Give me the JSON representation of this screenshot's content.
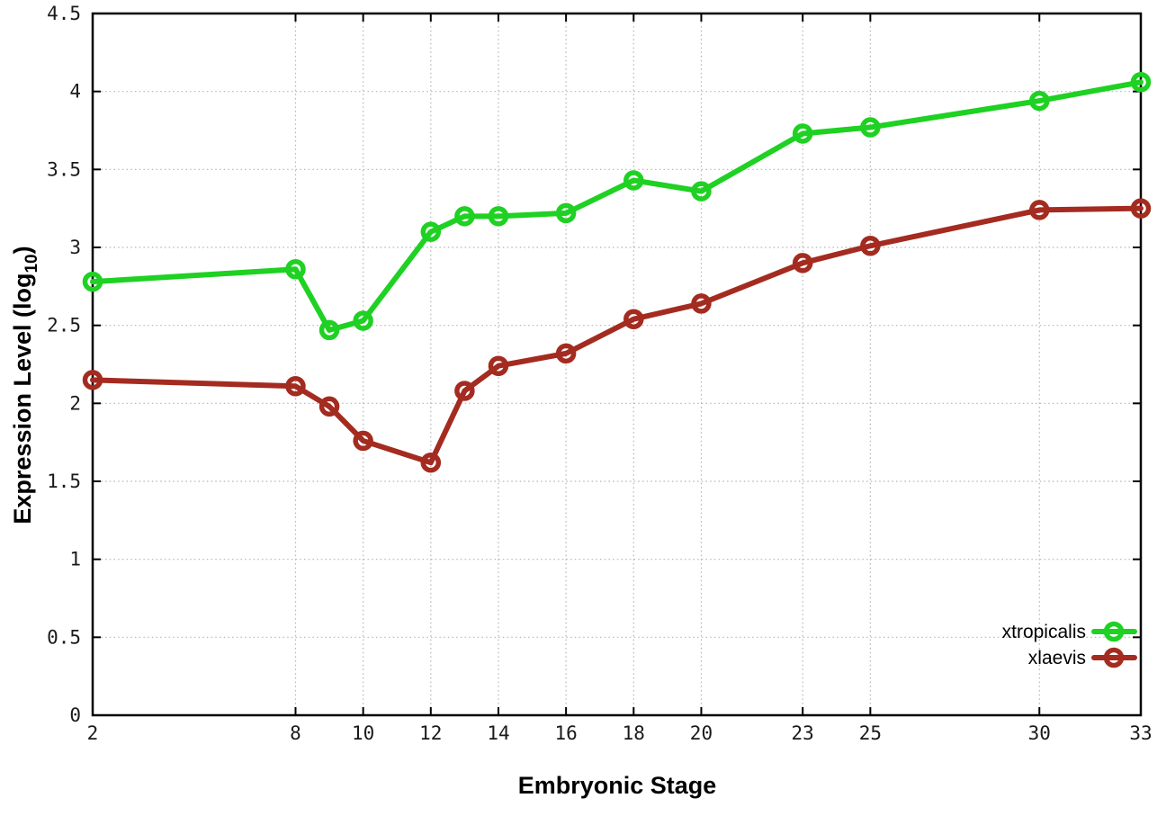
{
  "chart_data": {
    "type": "line",
    "title": "",
    "xlabel": "Embryonic Stage",
    "ylabel": "Expression Level (log10)",
    "ylabel_parts": [
      "Expression Level (log",
      "10",
      ")"
    ],
    "xlim": [
      2,
      33
    ],
    "ylim": [
      0,
      4.5
    ],
    "x_ticks": [
      2,
      8,
      10,
      12,
      14,
      16,
      18,
      20,
      23,
      25,
      30,
      33
    ],
    "y_ticks": [
      0,
      0.5,
      1,
      1.5,
      2,
      2.5,
      3,
      3.5,
      4,
      4.5
    ],
    "grid": true,
    "legend_position": "bottom-right",
    "x": [
      2,
      8,
      9,
      10,
      12,
      13,
      14,
      16,
      18,
      20,
      23,
      25,
      30,
      33
    ],
    "series": [
      {
        "name": "xtropicalis",
        "color": "#1ed122",
        "values": [
          2.78,
          2.86,
          2.47,
          2.53,
          3.1,
          3.2,
          3.2,
          3.22,
          3.43,
          3.36,
          3.73,
          3.77,
          3.94,
          4.06
        ]
      },
      {
        "name": "xlaevis",
        "color": "#a42b20",
        "values": [
          2.15,
          2.11,
          1.98,
          1.76,
          1.62,
          2.08,
          2.24,
          2.32,
          2.54,
          2.64,
          2.9,
          3.01,
          3.24,
          3.25
        ]
      }
    ],
    "colors": {
      "frame": "#000000",
      "grid": "#b3b3b3",
      "tick_text": "#1a1a1a"
    }
  }
}
